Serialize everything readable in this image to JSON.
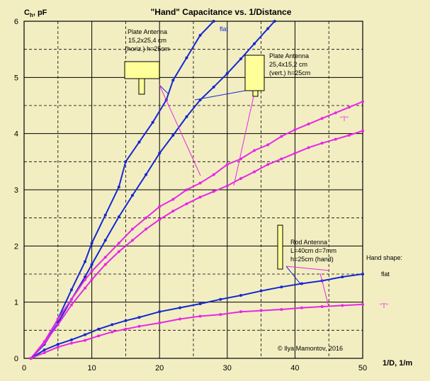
{
  "chart_data": {
    "type": "scatter",
    "title": "\"Hand\" Capacitance  vs.  1/Distance",
    "xlabel": "1/D, 1/m",
    "ylabel_main": "C",
    "ylabel_sub": "h",
    "ylabel_unit": ", pF",
    "xlim": [
      0,
      50
    ],
    "ylim": [
      0,
      6
    ],
    "x_ticks": [
      0,
      10,
      20,
      30,
      40,
      50
    ],
    "y_ticks": [
      0,
      1,
      2,
      3,
      4,
      5,
      6
    ],
    "grid": true,
    "copyright": "© Ilya Mamontov, 2016",
    "colors": {
      "background": "#f3eec2",
      "plot_background": "#f3eec2",
      "grid": "#000000",
      "blue": "#1428d2",
      "magenta": "#e628e6",
      "antenna_fill": "#ffff99"
    },
    "series": [
      {
        "color": "#1428d2",
        "x": [
          1,
          3,
          5,
          7,
          9,
          10,
          12,
          14,
          15,
          17,
          19,
          21,
          22,
          24,
          26,
          28
        ],
        "y": [
          0,
          0.28,
          0.7,
          1.22,
          1.72,
          2.05,
          2.55,
          3.05,
          3.5,
          3.85,
          4.2,
          4.6,
          4.95,
          5.35,
          5.75,
          6.0
        ]
      },
      {
        "color": "#1428d2",
        "x": [
          1,
          3,
          5,
          7,
          9,
          10,
          12,
          14,
          16,
          18,
          20,
          22,
          24,
          26,
          28,
          30,
          32,
          34,
          36,
          37
        ],
        "y": [
          0,
          0.25,
          0.63,
          1.05,
          1.45,
          1.67,
          2.1,
          2.52,
          2.9,
          3.27,
          3.65,
          3.97,
          4.3,
          4.6,
          4.83,
          5.07,
          5.33,
          5.6,
          5.87,
          6.0
        ]
      },
      {
        "color": "#e628e6",
        "x": [
          1,
          3,
          5,
          7,
          9,
          10,
          12,
          14,
          16,
          18,
          20,
          22,
          24,
          26,
          28,
          30,
          32,
          34,
          36,
          38,
          40,
          42,
          44,
          46,
          48,
          50
        ],
        "y": [
          0,
          0.3,
          0.7,
          1.05,
          1.4,
          1.55,
          1.8,
          2.05,
          2.3,
          2.5,
          2.7,
          2.83,
          3.0,
          3.12,
          3.27,
          3.45,
          3.55,
          3.7,
          3.8,
          3.95,
          4.07,
          4.17,
          4.27,
          4.37,
          4.47,
          4.57
        ]
      },
      {
        "color": "#e628e6",
        "x": [
          1,
          3,
          5,
          7,
          9,
          10,
          12,
          14,
          16,
          18,
          20,
          22,
          24,
          26,
          28,
          30,
          32,
          34,
          36,
          38,
          40,
          42,
          44,
          46,
          48,
          50
        ],
        "y": [
          0,
          0.27,
          0.6,
          0.95,
          1.25,
          1.4,
          1.67,
          1.9,
          2.1,
          2.3,
          2.47,
          2.62,
          2.75,
          2.87,
          2.97,
          3.07,
          3.2,
          3.32,
          3.45,
          3.55,
          3.65,
          3.75,
          3.83,
          3.9,
          3.97,
          4.05
        ]
      },
      {
        "color": "#1428d2",
        "x": [
          1,
          3,
          5,
          7,
          9,
          11,
          13,
          15,
          17,
          20,
          23,
          26,
          29,
          32,
          35,
          38,
          41,
          44,
          47,
          50
        ],
        "y": [
          0,
          0.15,
          0.25,
          0.33,
          0.42,
          0.52,
          0.6,
          0.67,
          0.73,
          0.83,
          0.9,
          0.97,
          1.05,
          1.12,
          1.2,
          1.27,
          1.33,
          1.38,
          1.45,
          1.5
        ]
      },
      {
        "color": "#e628e6",
        "x": [
          1,
          3,
          5,
          7,
          9,
          11,
          13,
          15,
          17,
          20,
          23,
          26,
          29,
          32,
          35,
          38,
          41,
          44,
          47,
          50
        ],
        "y": [
          0,
          0.1,
          0.2,
          0.27,
          0.32,
          0.4,
          0.47,
          0.52,
          0.57,
          0.63,
          0.7,
          0.75,
          0.78,
          0.83,
          0.85,
          0.87,
          0.9,
          0.92,
          0.94,
          0.96
        ]
      }
    ],
    "annotations": {
      "plate_horiz_lines": [
        "Plate Antenna",
        "15,2x25,4 cm",
        "(horiz.) h=25cm"
      ],
      "plate_vert_lines": [
        "Plate Antenna",
        "25,4x15,2 cm",
        "(vert.) h=25cm"
      ],
      "rod_lines": [
        "Rod Antenna",
        "L=40cm d=7mm",
        "h=25cm (hand)"
      ],
      "flat_top": "flat",
      "t_top": "\"T\"",
      "hand_shape": "Hand shape:",
      "flat_right": "flat",
      "t_right": "\"T\""
    }
  }
}
